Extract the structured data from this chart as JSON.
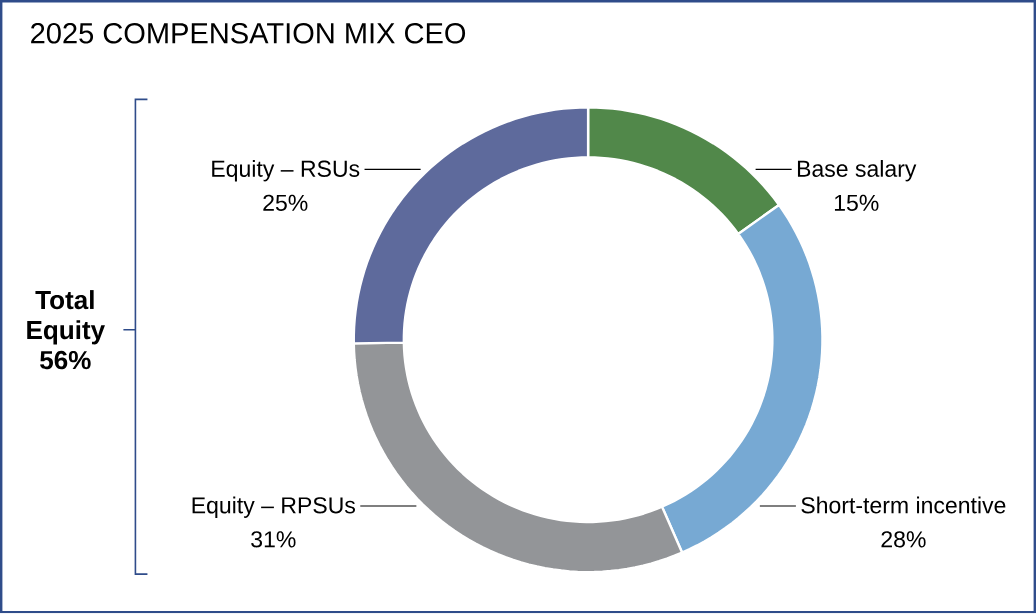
{
  "chart_data": {
    "type": "donut",
    "title": "2025 COMPENSATION MIX CEO",
    "categories": [
      "Base salary",
      "Short-term incentive",
      "Equity – RPSUs",
      "Equity – RSUs"
    ],
    "values": [
      15,
      28,
      31,
      25
    ],
    "value_labels": [
      "15%",
      "28%",
      "31%",
      "25%"
    ],
    "colors": [
      "#51884a",
      "#77a9d3",
      "#939598",
      "#5e6a9c"
    ],
    "annotations": [
      "Total Equity 56%"
    ]
  }
}
